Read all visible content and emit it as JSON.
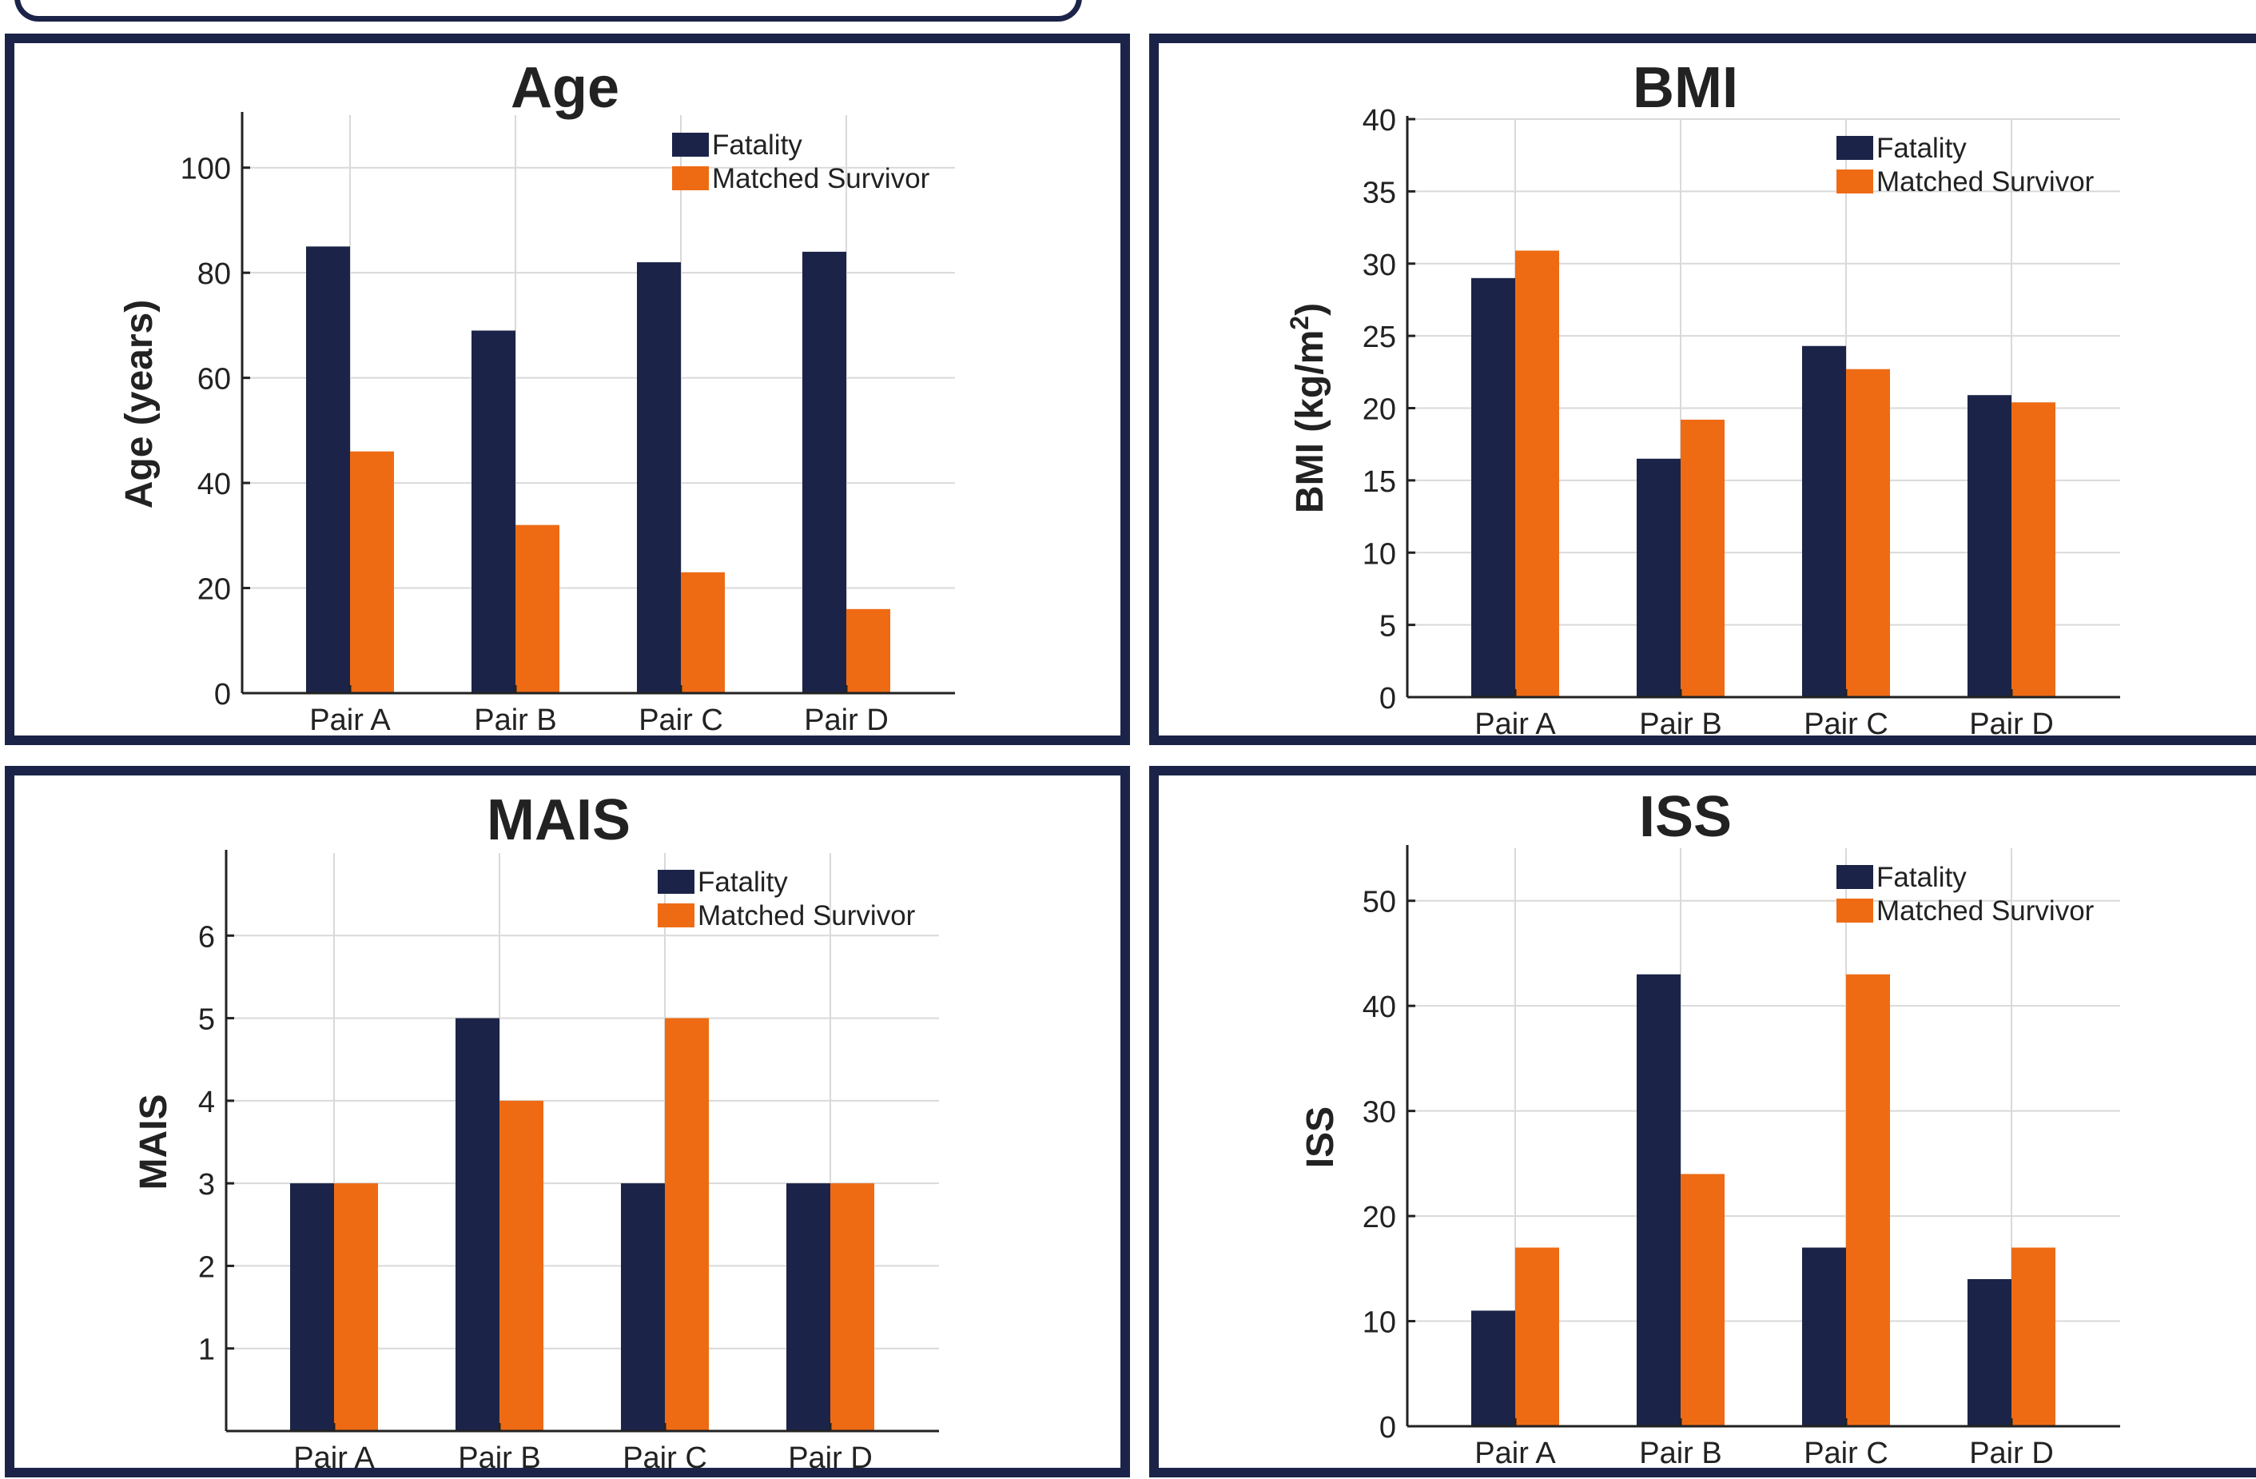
{
  "colors": {
    "fatality": "#1b2448",
    "survivor": "#ee6b14",
    "panel_border": "#1b2448",
    "grid": "#d9d9d9",
    "axis": "#222222"
  },
  "legend": {
    "fatality": "Fatality",
    "survivor": "Matched Survivor"
  },
  "chart_data": [
    {
      "type": "bar",
      "title": "Age",
      "ylabel": "Age (years)",
      "categories": [
        "Pair A",
        "Pair B",
        "Pair C",
        "Pair D"
      ],
      "ylim": [
        0,
        110
      ],
      "yticks": [
        "0",
        "20",
        "40",
        "60",
        "80",
        "100"
      ],
      "grid": true,
      "legend_position": "top-right",
      "series": [
        {
          "name": "Fatality",
          "values": [
            85,
            69,
            82,
            84
          ]
        },
        {
          "name": "Matched Survivor",
          "values": [
            46,
            32,
            23,
            16
          ]
        }
      ]
    },
    {
      "type": "bar",
      "title": "BMI",
      "ylabel": "BMI  (kg/m",
      "ylabel_sup": "2",
      "ylabel_end": ")",
      "categories": [
        "Pair A",
        "Pair B",
        "Pair C",
        "Pair D"
      ],
      "ylim": [
        0,
        40
      ],
      "yticks": [
        "0",
        "5",
        "10",
        "15",
        "20",
        "25",
        "30",
        "35",
        "40"
      ],
      "grid": true,
      "legend_position": "top-right",
      "series": [
        {
          "name": "Fatality",
          "values": [
            29,
            16.5,
            24.3,
            20.9
          ]
        },
        {
          "name": "Matched Survivor",
          "values": [
            30.9,
            19.2,
            22.7,
            20.4
          ]
        }
      ]
    },
    {
      "type": "bar",
      "title": "MAIS",
      "ylabel": "MAIS",
      "categories": [
        "Pair A",
        "Pair B",
        "Pair C",
        "Pair D"
      ],
      "ylim": [
        0,
        7
      ],
      "yticks": [
        "1",
        "2",
        "3",
        "4",
        "5",
        "6"
      ],
      "grid": true,
      "legend_position": "top-right",
      "series": [
        {
          "name": "Fatality",
          "values": [
            3,
            5,
            3,
            3
          ]
        },
        {
          "name": "Matched Survivor",
          "values": [
            3,
            4,
            5,
            3
          ]
        }
      ]
    },
    {
      "type": "bar",
      "title": "ISS",
      "ylabel": "ISS",
      "categories": [
        "Pair A",
        "Pair B",
        "Pair C",
        "Pair D"
      ],
      "ylim": [
        0,
        55
      ],
      "yticks": [
        "0",
        "10",
        "20",
        "30",
        "40",
        "50"
      ],
      "grid": true,
      "legend_position": "top-right",
      "series": [
        {
          "name": "Fatality",
          "values": [
            11,
            43,
            17,
            14
          ]
        },
        {
          "name": "Matched Survivor",
          "values": [
            17,
            24,
            43,
            17
          ]
        }
      ]
    }
  ]
}
